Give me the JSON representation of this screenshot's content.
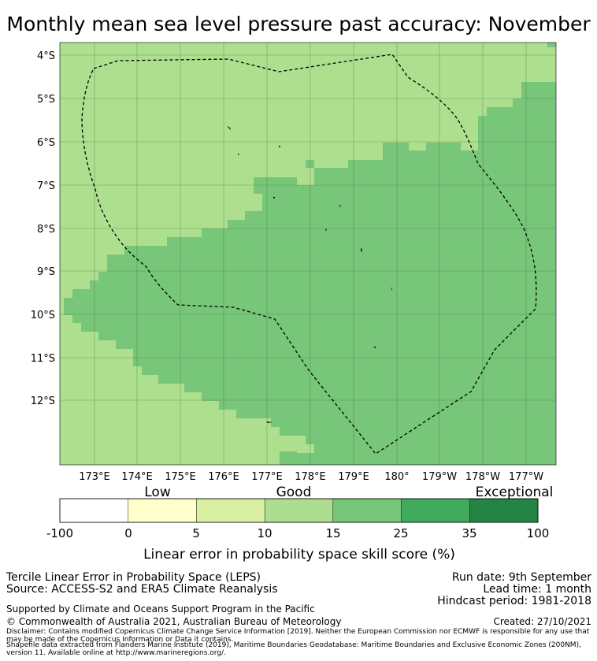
{
  "title": "Monthly mean sea level pressure past accuracy: November",
  "map": {
    "lat_labels": [
      "4°S",
      "5°S",
      "6°S",
      "7°S",
      "8°S",
      "9°S",
      "10°S",
      "11°S",
      "12°S"
    ],
    "lon_labels": [
      "173°E",
      "174°E",
      "175°E",
      "176°E",
      "177°E",
      "178°E",
      "179°E",
      "180°",
      "179°W",
      "178°W",
      "177°W"
    ],
    "colors": {
      "good_mid": "#addf8e",
      "good_high": "#78c679",
      "land": "#000000",
      "boundary": "#000000"
    }
  },
  "colorbar": {
    "category_labels": [
      "Low",
      "Good",
      "Exceptional"
    ],
    "ticks": [
      "-100",
      "0",
      "5",
      "10",
      "15",
      "25",
      "35",
      "100"
    ],
    "colors": [
      "#ffffff",
      "#ffffcc",
      "#d9f0a3",
      "#addd8e",
      "#78c679",
      "#41ab5d",
      "#238443"
    ],
    "label": "Linear error in probability space skill score (%)"
  },
  "footer": {
    "method": "Tercile Linear Error in Probability Space (LEPS)",
    "source": "Source: ACCESS-S2 and ERA5 Climate Reanalysis",
    "run_date": "Run date: 9th September",
    "lead_time": "Lead time: 1 month",
    "hindcast": "Hindcast period: 1981-2018",
    "supported": "Supported by Climate and Oceans Support Program in the Pacific",
    "copyright": "© Commonwealth of Australia 2021, Australian Bureau of Meteorology",
    "created": "Created: 27/10/2021",
    "disclaimer": "Disclaimer: Contains modified Copernicus Climate Change Service Information [2019]. Neither the European Commission nor ECMWF is responsible for any use that may be made of the Copernicus Information or Data it contains.",
    "shapefile": "Shapefile data extracted from Flanders Marine Institute (2019), Maritime Boundaries Geodatabase: Maritime Boundaries and Exclusive Economic Zones (200NM), version 11. Available online at http://www.marineregions.org/."
  }
}
